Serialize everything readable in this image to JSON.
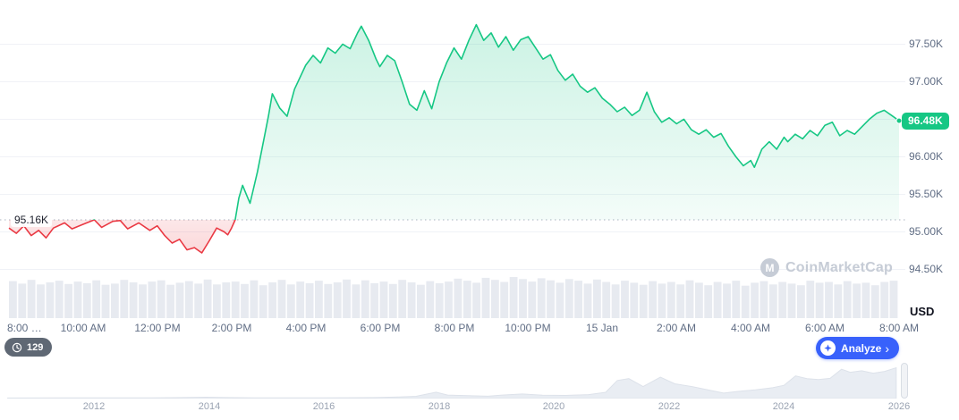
{
  "meta": {
    "currency_label": "USD"
  },
  "watermark": {
    "label": "CoinMarketCap"
  },
  "badges": {
    "count": "129",
    "analyze_label": "Analyze",
    "analyze_chevron": "›"
  },
  "chart_data": {
    "type": "line",
    "title": "",
    "baseline": {
      "label": "95.16K",
      "value": 95.16
    },
    "last_price": {
      "label": "96.48K",
      "value": 96.48
    },
    "ylim": [
      94.3,
      97.95
    ],
    "grid_values": [
      94.5,
      95.0,
      95.5,
      96.0,
      96.5,
      97.0,
      97.5
    ],
    "y_ticks": [
      "97.50K",
      "97.00K",
      "96.00K",
      "95.50K",
      "95.00K",
      "94.50K"
    ],
    "y_tick_values": [
      97.5,
      97.0,
      96.0,
      95.5,
      95.0,
      94.5
    ],
    "x_ticks": [
      "8:00 …",
      "10:00 AM",
      "12:00 PM",
      "2:00 PM",
      "4:00 PM",
      "6:00 PM",
      "8:00 PM",
      "10:00 PM",
      "15 Jan",
      "2:00 AM",
      "4:00 AM",
      "6:00 AM",
      "8:00 AM"
    ],
    "x_tick_hours": [
      0,
      2,
      4,
      6,
      8,
      10,
      12,
      14,
      16,
      18,
      20,
      22,
      24
    ],
    "series": [
      {
        "name": "price",
        "x_hours": [
          0,
          0.2,
          0.4,
          0.6,
          0.8,
          1.0,
          1.2,
          1.5,
          1.7,
          2.0,
          2.3,
          2.5,
          2.8,
          3.0,
          3.2,
          3.5,
          3.8,
          4.0,
          4.2,
          4.4,
          4.6,
          4.8,
          5.0,
          5.2,
          5.4,
          5.6,
          5.8,
          5.9,
          6.0,
          6.1,
          6.2,
          6.3,
          6.4,
          6.5,
          6.7,
          6.9,
          7.0,
          7.1,
          7.3,
          7.5,
          7.7,
          8.0,
          8.2,
          8.4,
          8.6,
          8.8,
          9.0,
          9.2,
          9.4,
          9.5,
          9.7,
          9.9,
          10.0,
          10.2,
          10.4,
          10.6,
          10.8,
          11.0,
          11.2,
          11.4,
          11.6,
          11.8,
          12.0,
          12.2,
          12.4,
          12.6,
          12.8,
          13.0,
          13.2,
          13.4,
          13.6,
          13.8,
          14.0,
          14.2,
          14.4,
          14.6,
          14.8,
          15.0,
          15.2,
          15.4,
          15.6,
          15.8,
          16.0,
          16.2,
          16.4,
          16.6,
          16.8,
          17.0,
          17.2,
          17.4,
          17.6,
          17.8,
          18.0,
          18.2,
          18.4,
          18.6,
          18.8,
          19.0,
          19.2,
          19.4,
          19.6,
          19.8,
          20.0,
          20.1,
          20.3,
          20.5,
          20.7,
          20.9,
          21.0,
          21.2,
          21.4,
          21.6,
          21.8,
          22.0,
          22.2,
          22.4,
          22.6,
          22.8,
          23.0,
          23.2,
          23.4,
          23.6,
          23.8,
          24.0
        ],
        "values": [
          95.05,
          94.98,
          95.08,
          94.95,
          95.02,
          94.92,
          95.05,
          95.12,
          95.04,
          95.1,
          95.16,
          95.06,
          95.14,
          95.15,
          95.04,
          95.12,
          95.02,
          95.08,
          94.95,
          94.85,
          94.9,
          94.76,
          94.79,
          94.72,
          94.88,
          95.05,
          95.0,
          94.96,
          95.05,
          95.16,
          95.45,
          95.62,
          95.5,
          95.38,
          95.8,
          96.3,
          96.55,
          96.84,
          96.65,
          96.54,
          96.9,
          97.22,
          97.35,
          97.25,
          97.45,
          97.38,
          97.5,
          97.44,
          97.65,
          97.74,
          97.55,
          97.3,
          97.2,
          97.35,
          97.28,
          97.0,
          96.7,
          96.62,
          96.88,
          96.64,
          97.0,
          97.25,
          97.45,
          97.3,
          97.55,
          97.76,
          97.55,
          97.65,
          97.46,
          97.6,
          97.42,
          97.56,
          97.6,
          97.45,
          97.3,
          97.36,
          97.15,
          97.02,
          97.1,
          96.94,
          96.86,
          96.92,
          96.78,
          96.7,
          96.6,
          96.66,
          96.55,
          96.62,
          96.86,
          96.6,
          96.46,
          96.52,
          96.44,
          96.5,
          96.36,
          96.3,
          96.36,
          96.26,
          96.31,
          96.14,
          96.0,
          95.88,
          95.95,
          95.86,
          96.1,
          96.2,
          96.1,
          96.26,
          96.2,
          96.3,
          96.24,
          96.35,
          96.28,
          96.42,
          96.46,
          96.28,
          96.35,
          96.3,
          96.4,
          96.5,
          96.58,
          96.62,
          96.55,
          96.48
        ]
      }
    ],
    "volume": [
      0.9,
      0.84,
      0.93,
      0.82,
      0.87,
      0.91,
      0.83,
      0.89,
      0.85,
      0.92,
      0.81,
      0.84,
      0.93,
      0.87,
      0.82,
      0.89,
      0.92,
      0.81,
      0.86,
      0.9,
      0.84,
      0.94,
      0.82,
      0.87,
      0.89,
      0.83,
      0.92,
      0.8,
      0.87,
      0.93,
      0.82,
      0.89,
      0.85,
      0.91,
      0.83,
      0.87,
      0.94,
      0.82,
      0.92,
      0.85,
      0.89,
      0.83,
      0.93,
      0.87,
      0.81,
      0.9,
      0.85,
      0.89,
      0.96,
      0.91,
      0.86,
      0.98,
      0.93,
      0.88,
      1.0,
      0.95,
      0.89,
      0.97,
      0.92,
      0.86,
      0.95,
      0.91,
      0.84,
      0.94,
      0.88,
      0.82,
      0.91,
      0.86,
      0.81,
      0.9,
      0.84,
      0.88,
      0.82,
      0.92,
      0.86,
      0.8,
      0.88,
      0.84,
      0.91,
      0.79,
      0.86,
      0.9,
      0.82,
      0.88,
      0.84,
      0.8,
      0.91,
      0.86,
      0.88,
      0.82,
      0.9,
      0.84,
      0.86,
      0.8,
      0.88,
      0.91
    ],
    "brush": {
      "x_ticks": [
        "2012",
        "2014",
        "2016",
        "2018",
        "2020",
        "2022",
        "2024",
        "2026"
      ],
      "tick_years": [
        2012,
        2014,
        2016,
        2018,
        2020,
        2022,
        2024,
        2026
      ],
      "years": [
        2010.5,
        2011.5,
        2012,
        2012.6,
        2013,
        2013.4,
        2013.95,
        2014.3,
        2014.8,
        2015.3,
        2015.9,
        2016.4,
        2016.9,
        2017.3,
        2017.6,
        2017.95,
        2018.15,
        2018.5,
        2018.85,
        2019.1,
        2019.45,
        2019.8,
        2020.2,
        2020.6,
        2020.9,
        2021.1,
        2021.3,
        2021.55,
        2021.85,
        2022.1,
        2022.4,
        2022.75,
        2022.95,
        2023.2,
        2023.5,
        2023.8,
        2024.0,
        2024.2,
        2024.4,
        2024.6,
        2024.8,
        2025.0,
        2025.15,
        2025.35,
        2025.55,
        2025.75,
        2025.95
      ],
      "values": [
        0.004,
        0.005,
        0.006,
        0.007,
        0.01,
        0.016,
        0.028,
        0.018,
        0.01,
        0.007,
        0.009,
        0.013,
        0.018,
        0.035,
        0.06,
        0.195,
        0.1,
        0.08,
        0.062,
        0.1,
        0.135,
        0.095,
        0.088,
        0.115,
        0.19,
        0.58,
        0.64,
        0.38,
        0.69,
        0.47,
        0.38,
        0.24,
        0.165,
        0.22,
        0.27,
        0.34,
        0.42,
        0.73,
        0.64,
        0.61,
        0.65,
        0.95,
        0.85,
        0.9,
        0.82,
        0.88,
        1.0
      ]
    },
    "colors": {
      "up": "#16c784",
      "down": "#ea3943",
      "accent_blue": "#3861fb",
      "grid": "#f0f2f7",
      "axis_text": "#616e85",
      "volume": "#e7eaf0",
      "brush_fill": "#e9edf3"
    }
  }
}
